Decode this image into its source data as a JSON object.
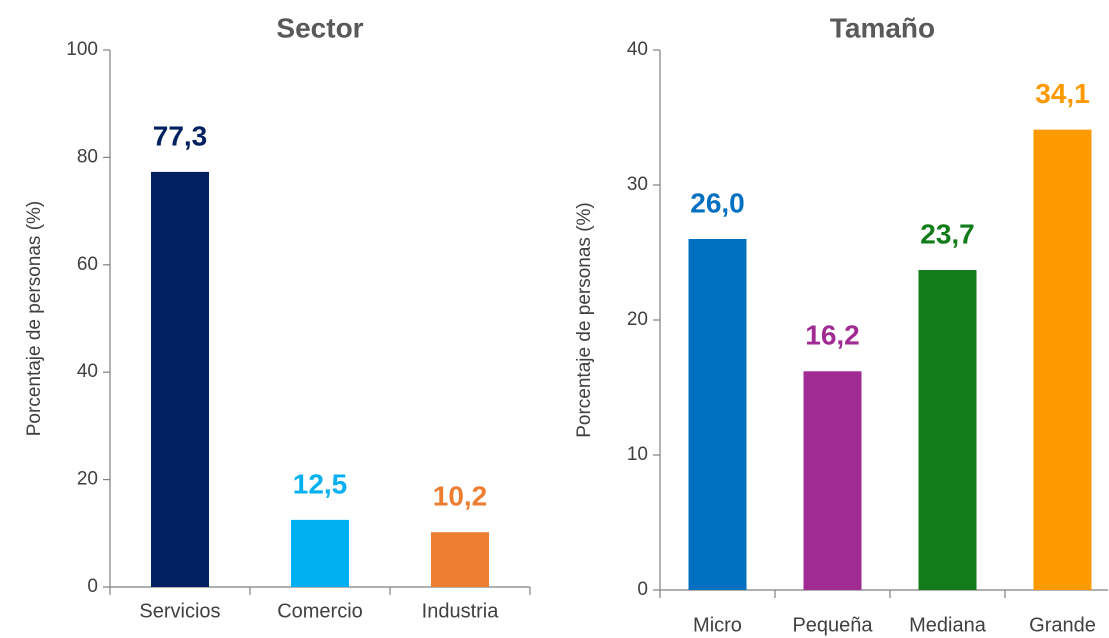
{
  "chart_data": [
    {
      "type": "bar",
      "title": "Sector",
      "y_label": "Porcentaje de personas (%)",
      "categories": [
        "Servicios",
        "Comercio",
        "Industria"
      ],
      "values": [
        77.3,
        12.5,
        10.2
      ],
      "value_labels": [
        "77,3",
        "12,5",
        "10,2"
      ],
      "colors": [
        "#002060",
        "#00b0f0",
        "#ed7d31"
      ],
      "ylim": [
        0,
        100
      ],
      "yticks": [
        0,
        20,
        40,
        60,
        80,
        100
      ],
      "grid": false
    },
    {
      "type": "bar",
      "title": "Tamaño",
      "y_label": "Porcentaje de personas (%)",
      "categories": [
        "Micro",
        "Pequeña",
        "Mediana",
        "Grande"
      ],
      "values": [
        26.0,
        16.2,
        23.7,
        34.1
      ],
      "value_labels": [
        "26,0",
        "16,2",
        "23,7",
        "34,1"
      ],
      "colors": [
        "#0070c0",
        "#a02b93",
        "#127b1a",
        "#ff9900"
      ],
      "ylim": [
        0,
        40
      ],
      "yticks": [
        0,
        10,
        20,
        30,
        40
      ],
      "grid": false
    }
  ]
}
